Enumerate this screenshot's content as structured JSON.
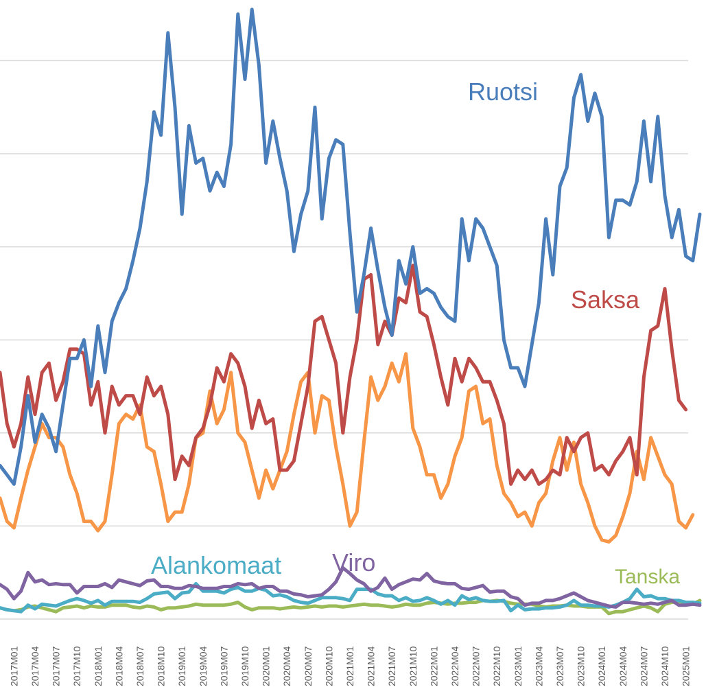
{
  "chart_data": {
    "type": "line",
    "title": "",
    "xlabel": "",
    "ylabel": "",
    "y_units_note": "no y-axis tick labels shown; values in gridline units (0 = baseline, each gridline = 1)",
    "ylim": [
      0,
      6.3
    ],
    "y_gridlines": [
      0,
      1,
      2,
      3,
      4,
      5,
      6
    ],
    "grid": true,
    "legend": "inline labels",
    "x_start": "2016M11",
    "x_end": "2025M01",
    "tick_labels": [
      "2017M01",
      "2017M04",
      "2017M07",
      "2017M10",
      "2018M01",
      "2018M04",
      "2018M07",
      "2018M10",
      "2019M01",
      "2019M04",
      "2019M07",
      "2019M10",
      "2020M01",
      "2020M04",
      "2020M07",
      "2020M10",
      "2021M01",
      "2021M04",
      "2021M07",
      "2021M10",
      "2022M01",
      "2022M04",
      "2022M07",
      "2022M10",
      "2023M01",
      "2023M04",
      "2023M07",
      "2023M10",
      "2024M01",
      "2024M04",
      "2024M07",
      "2024M10",
      "2025M01"
    ],
    "series": [
      {
        "name": "Ruotsi",
        "label": "Ruotsi",
        "color": "#4a7ebb",
        "values": [
          1.65,
          1.55,
          1.45,
          1.85,
          2.4,
          1.9,
          2.2,
          2.05,
          1.8,
          2.3,
          2.8,
          2.8,
          3.0,
          2.5,
          3.15,
          2.65,
          3.2,
          3.4,
          3.55,
          3.85,
          4.2,
          4.7,
          5.45,
          5.2,
          6.3,
          5.5,
          4.35,
          5.3,
          4.9,
          4.95,
          4.6,
          4.8,
          4.65,
          5.1,
          6.5,
          5.8,
          6.55,
          5.95,
          4.9,
          5.35,
          4.95,
          4.6,
          3.95,
          4.35,
          4.6,
          5.5,
          4.3,
          4.95,
          5.15,
          5.1,
          4.15,
          3.3,
          3.7,
          4.2,
          3.75,
          3.35,
          3.05,
          3.85,
          3.6,
          4.0,
          3.5,
          3.55,
          3.5,
          3.35,
          3.25,
          3.2,
          4.3,
          3.85,
          4.3,
          4.2,
          4.0,
          3.8,
          3.0,
          2.7,
          2.7,
          2.5,
          2.95,
          3.4,
          4.3,
          3.7,
          4.65,
          4.85,
          5.6,
          5.85,
          5.35,
          5.65,
          5.4,
          4.1,
          4.5,
          4.5,
          4.45,
          4.7,
          5.35,
          4.7,
          5.4,
          4.55,
          4.1,
          4.4,
          3.9,
          3.85,
          4.35
        ],
        "label_color": "#4a7ebb"
      },
      {
        "name": "Saksa",
        "label": "Saksa",
        "color": "#be4b48",
        "values": [
          2.65,
          2.1,
          1.85,
          2.1,
          2.6,
          2.2,
          2.65,
          2.75,
          2.35,
          2.55,
          2.9,
          2.9,
          2.85,
          2.3,
          2.55,
          2.0,
          2.5,
          2.3,
          2.4,
          2.4,
          2.2,
          2.6,
          2.4,
          2.5,
          2.2,
          1.5,
          1.75,
          1.65,
          1.95,
          2.05,
          2.3,
          2.7,
          2.55,
          2.85,
          2.75,
          2.5,
          2.05,
          2.35,
          2.1,
          2.15,
          1.6,
          1.6,
          1.7,
          2.1,
          2.5,
          3.2,
          3.25,
          3.0,
          2.75,
          2.0,
          2.6,
          3.0,
          3.65,
          3.7,
          2.95,
          3.2,
          3.05,
          3.45,
          3.4,
          3.8,
          3.3,
          3.25,
          2.95,
          2.6,
          2.3,
          2.8,
          2.55,
          2.8,
          2.7,
          2.55,
          2.55,
          2.35,
          2.1,
          1.45,
          1.6,
          1.5,
          1.6,
          1.45,
          1.5,
          1.6,
          1.55,
          1.95,
          1.8,
          1.95,
          2.0,
          1.6,
          1.65,
          1.55,
          1.7,
          1.8,
          1.95,
          1.55,
          2.6,
          3.1,
          3.15,
          3.55,
          2.9,
          2.35,
          2.25
        ],
        "label_color": "#be4b48"
      },
      {
        "name": "(unlabeled)",
        "label": "",
        "color": "#f79646",
        "values": [
          1.3,
          1.05,
          0.98,
          1.3,
          1.6,
          1.85,
          2.1,
          1.95,
          1.95,
          1.85,
          1.55,
          1.35,
          1.05,
          1.05,
          0.95,
          1.05,
          1.55,
          2.1,
          2.2,
          2.15,
          2.3,
          1.85,
          1.8,
          1.45,
          1.05,
          1.15,
          1.15,
          1.45,
          1.95,
          2.0,
          2.45,
          2.1,
          2.25,
          2.65,
          2.0,
          1.9,
          1.6,
          1.3,
          1.6,
          1.4,
          1.6,
          1.8,
          2.2,
          2.55,
          2.65,
          2.0,
          2.4,
          2.35,
          1.85,
          1.45,
          1.0,
          1.15,
          1.9,
          2.6,
          2.35,
          2.5,
          2.75,
          2.55,
          2.85,
          2.05,
          1.85,
          1.55,
          1.55,
          1.3,
          1.45,
          1.75,
          1.95,
          2.45,
          2.5,
          2.1,
          2.15,
          1.65,
          1.35,
          1.25,
          1.1,
          1.15,
          1.0,
          1.25,
          1.35,
          1.7,
          1.95,
          1.6,
          1.9,
          1.45,
          1.25,
          1.0,
          0.85,
          0.83,
          0.9,
          1.1,
          1.35,
          1.8,
          1.5,
          1.95,
          1.75,
          1.55,
          1.45,
          1.05,
          0.98,
          1.12
        ],
        "label_color": "#f79646"
      },
      {
        "name": "Viro",
        "label": "Viro",
        "color": "#8064a2",
        "values": [
          0.37,
          0.32,
          0.22,
          0.3,
          0.5,
          0.4,
          0.42,
          0.37,
          0.38,
          0.37,
          0.37,
          0.28,
          0.35,
          0.35,
          0.35,
          0.38,
          0.34,
          0.42,
          0.4,
          0.38,
          0.36,
          0.41,
          0.42,
          0.35,
          0.35,
          0.33,
          0.33,
          0.36,
          0.35,
          0.33,
          0.33,
          0.33,
          0.35,
          0.35,
          0.38,
          0.37,
          0.38,
          0.33,
          0.35,
          0.35,
          0.3,
          0.3,
          0.27,
          0.26,
          0.24,
          0.25,
          0.26,
          0.32,
          0.4,
          0.55,
          0.49,
          0.42,
          0.38,
          0.3,
          0.34,
          0.44,
          0.32,
          0.37,
          0.4,
          0.43,
          0.42,
          0.49,
          0.41,
          0.39,
          0.38,
          0.38,
          0.33,
          0.32,
          0.34,
          0.36,
          0.29,
          0.3,
          0.3,
          0.24,
          0.22,
          0.15,
          0.17,
          0.17,
          0.2,
          0.2,
          0.22,
          0.25,
          0.28,
          0.24,
          0.2,
          0.18,
          0.16,
          0.14,
          0.13,
          0.18,
          0.18,
          0.17,
          0.16,
          0.17,
          0.16,
          0.18,
          0.2,
          0.15,
          0.15,
          0.16,
          0.15
        ],
        "label_color": "#8064a2"
      },
      {
        "name": "Alankomaat",
        "label": "Alankomaat",
        "color": "#4bacc6",
        "values": [
          0.12,
          0.1,
          0.09,
          0.08,
          0.15,
          0.11,
          0.16,
          0.15,
          0.14,
          0.17,
          0.2,
          0.22,
          0.2,
          0.17,
          0.2,
          0.15,
          0.19,
          0.19,
          0.19,
          0.19,
          0.18,
          0.22,
          0.27,
          0.28,
          0.29,
          0.22,
          0.28,
          0.29,
          0.38,
          0.3,
          0.3,
          0.3,
          0.28,
          0.32,
          0.34,
          0.3,
          0.3,
          0.33,
          0.31,
          0.25,
          0.26,
          0.24,
          0.2,
          0.18,
          0.17,
          0.2,
          0.23,
          0.23,
          0.23,
          0.22,
          0.2,
          0.32,
          0.32,
          0.32,
          0.27,
          0.25,
          0.25,
          0.2,
          0.23,
          0.19,
          0.2,
          0.23,
          0.2,
          0.16,
          0.2,
          0.15,
          0.25,
          0.21,
          0.23,
          0.2,
          0.19,
          0.19,
          0.2,
          0.09,
          0.15,
          0.1,
          0.11,
          0.11,
          0.12,
          0.12,
          0.13,
          0.15,
          0.2,
          0.15,
          0.15,
          0.14,
          0.14,
          0.13,
          0.15,
          0.18,
          0.22,
          0.32,
          0.24,
          0.25,
          0.22,
          0.22,
          0.2,
          0.2,
          0.18,
          0.18,
          0.17
        ],
        "label_color": "#4bacc6"
      },
      {
        "name": "Tanska",
        "label": "Tanska",
        "color": "#9bbb59",
        "values": [
          0.12,
          0.1,
          0.09,
          0.1,
          0.13,
          0.14,
          0.12,
          0.1,
          0.08,
          0.12,
          0.13,
          0.14,
          0.12,
          0.14,
          0.13,
          0.13,
          0.15,
          0.15,
          0.15,
          0.13,
          0.12,
          0.14,
          0.13,
          0.1,
          0.12,
          0.12,
          0.13,
          0.14,
          0.16,
          0.15,
          0.15,
          0.15,
          0.15,
          0.16,
          0.18,
          0.13,
          0.1,
          0.12,
          0.12,
          0.12,
          0.11,
          0.12,
          0.13,
          0.12,
          0.13,
          0.14,
          0.13,
          0.14,
          0.14,
          0.13,
          0.14,
          0.15,
          0.16,
          0.15,
          0.15,
          0.14,
          0.13,
          0.14,
          0.16,
          0.15,
          0.15,
          0.17,
          0.18,
          0.17,
          0.16,
          0.17,
          0.17,
          0.18,
          0.18,
          0.2,
          0.19,
          0.2,
          0.19,
          0.17,
          0.16,
          0.16,
          0.16,
          0.14,
          0.13,
          0.14,
          0.14,
          0.15,
          0.14,
          0.14,
          0.13,
          0.13,
          0.13,
          0.06,
          0.08,
          0.08,
          0.1,
          0.12,
          0.14,
          0.12,
          0.08,
          0.16,
          0.18,
          0.19,
          0.17,
          0.16,
          0.2
        ],
        "label_color": "#9bbb59"
      }
    ]
  }
}
